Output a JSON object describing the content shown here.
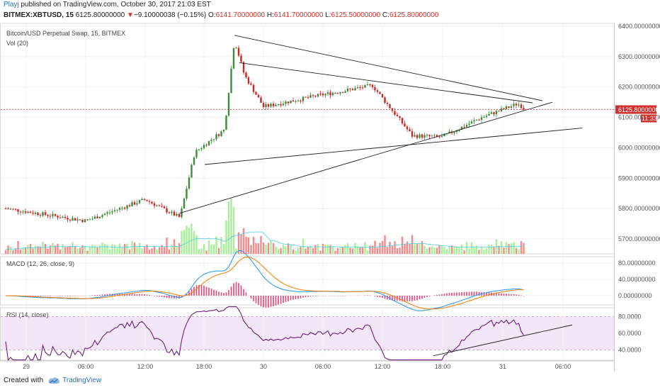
{
  "header": {
    "user": "Playj",
    "published": "published on TradingView.com, October 30, 2017 21:03 EST",
    "symbol": "BITMEX:XBTUSD, 15",
    "last": "6125.80000000",
    "change_arrow": "▼",
    "change": "−9.10000038 (−0.15%)",
    "ohlc": {
      "o_label": "O:",
      "o": "6141.70000000",
      "h_label": "H:",
      "h": "6141.70000000",
      "l_label": "L:",
      "l": "6125.50000000",
      "c_label": "C:",
      "c": "6125.80000000"
    }
  },
  "panes": {
    "price_title": "Bitcoin/USD Perpetual Swap, 15, BITMEX",
    "vol_title": "Vol (20)",
    "macd_title": "MACD (12, 26, close, 9)",
    "rsi_title": "RSI (14, close)"
  },
  "axes": {
    "price_ticks": [
      "6400.00000000",
      "6300.00000000",
      "6200.00000000",
      "6100.00000000",
      "6000.00000000",
      "5900.00000000",
      "5800.00000000",
      "5700.00000000"
    ],
    "price_values": [
      6400,
      6300,
      6200,
      6100,
      6000,
      5900,
      5800,
      5700
    ],
    "macd_ticks": [
      "80.00000000",
      "40.00000000",
      "0.00000000"
    ],
    "macd_values": [
      80,
      40,
      0
    ],
    "rsi_ticks": [
      "80.0000",
      "60.0000",
      "40.0000"
    ],
    "rsi_values": [
      80,
      60,
      40
    ],
    "time_ticks": [
      "29",
      "06:00",
      "12:00",
      "18:00",
      "30",
      "06:00",
      "12:00",
      "18:00",
      "31",
      "06:00"
    ],
    "last_price_label": "6125.80000000",
    "countdown": "11:33"
  },
  "footer": {
    "created_with": "Created with",
    "brand": "TradingView"
  },
  "colors": {
    "up": "#3d8b3d",
    "down": "#c62828",
    "vol_up": "#a8ee9b",
    "vol_down": "#f08c8c",
    "macd_line": "#2196f3",
    "signal_line": "#f57c00",
    "hist": "#e0457b",
    "rsi_line": "#6b1e7a",
    "rsi_band": "#f3e6f8",
    "last_price": "#d0312d"
  },
  "chart_data": {
    "type": "candlestick",
    "price_range": [
      5640,
      6410
    ],
    "last_price": 6125.8,
    "key_points": [
      {
        "t": "29 00:00",
        "price": 5790
      },
      {
        "t": "29 06:00",
        "price": 5760
      },
      {
        "t": "29 12:00",
        "price": 5830
      },
      {
        "t": "29 15:30",
        "price": 5770
      },
      {
        "t": "29 17:00",
        "price": 5985
      },
      {
        "t": "29 20:00",
        "price": 6060
      },
      {
        "t": "29 21:00",
        "price": 6355
      },
      {
        "t": "29 22:00",
        "price": 6240
      },
      {
        "t": "30 00:00",
        "price": 6135
      },
      {
        "t": "30 06:00",
        "price": 6175
      },
      {
        "t": "30 11:00",
        "price": 6205
      },
      {
        "t": "30 15:00",
        "price": 6040
      },
      {
        "t": "30 18:00",
        "price": 6035
      },
      {
        "t": "30 22:00",
        "price": 6100
      },
      {
        "t": "31 01:30",
        "price": 6145
      },
      {
        "t": "31 02:30",
        "price": 6125.8
      }
    ],
    "trendlines": [
      {
        "from": [
          "29 21:00",
          6370
        ],
        "to": [
          "31 04:00",
          6155
        ]
      },
      {
        "from": [
          "29 21:30",
          6280
        ],
        "to": [
          "31 03:00",
          6148
        ]
      },
      {
        "from": [
          "29 15:30",
          5785
        ],
        "to": [
          "31 05:00",
          6150
        ]
      },
      {
        "from": [
          "29 18:00",
          5945
        ],
        "to": [
          "31 08:00",
          6065
        ]
      }
    ],
    "macd_range": [
      -25,
      95
    ],
    "rsi_range": [
      27,
      92
    ]
  }
}
